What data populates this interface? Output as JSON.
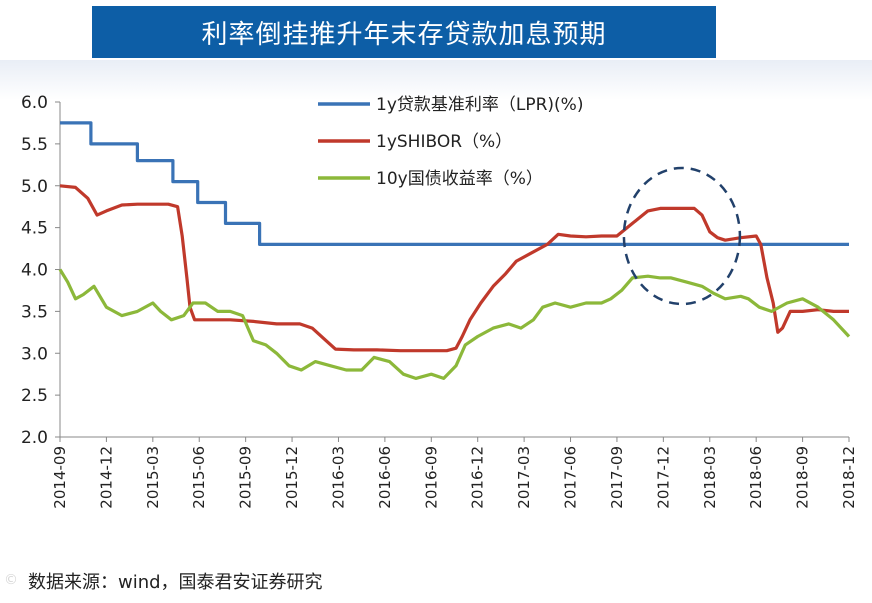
{
  "header": {
    "title": "利率倒挂推升年末存贷款加息预期"
  },
  "source": "数据来源：wind，国泰君安证券研究",
  "chart_data": {
    "type": "line",
    "ylim": [
      2.0,
      6.0
    ],
    "yticks": [
      "6.0",
      "5.5",
      "5.0",
      "4.5",
      "4.0",
      "3.5",
      "3.0",
      "2.5",
      "2.0"
    ],
    "xticks": [
      "2014-09",
      "2014-12",
      "2015-03",
      "2015-06",
      "2015-09",
      "2015-12",
      "2016-03",
      "2016-06",
      "2016-09",
      "2016-12",
      "2017-03",
      "2017-06",
      "2017-09",
      "2017-12",
      "2018-03",
      "2018-06",
      "2018-09",
      "2018-12"
    ],
    "x_months": [
      0,
      51
    ],
    "legend": [
      {
        "name": "1y贷款基准利率（LPR)(%)",
        "color": "#3a73b6"
      },
      {
        "name": "1ySHIBOR（%）",
        "color": "#c0392b"
      },
      {
        "name": "10y国债收益率（%）",
        "color": "#8cb83a"
      }
    ],
    "series": [
      {
        "name": "1y贷款基准利率（LPR)(%)",
        "color": "#3a73b6",
        "step": true,
        "points": [
          [
            0,
            5.75
          ],
          [
            2.0,
            5.75
          ],
          [
            2.0,
            5.5
          ],
          [
            5.0,
            5.5
          ],
          [
            5.0,
            5.3
          ],
          [
            7.3,
            5.3
          ],
          [
            7.3,
            5.05
          ],
          [
            8.9,
            5.05
          ],
          [
            8.9,
            4.8
          ],
          [
            10.7,
            4.8
          ],
          [
            10.7,
            4.55
          ],
          [
            12.9,
            4.55
          ],
          [
            12.9,
            4.3
          ],
          [
            51,
            4.3
          ]
        ]
      },
      {
        "name": "1ySHIBOR（%）",
        "color": "#c0392b",
        "step": false,
        "points": [
          [
            0,
            5.0
          ],
          [
            1,
            4.98
          ],
          [
            1.8,
            4.85
          ],
          [
            2.4,
            4.65
          ],
          [
            3,
            4.7
          ],
          [
            4,
            4.77
          ],
          [
            5,
            4.78
          ],
          [
            6,
            4.78
          ],
          [
            7,
            4.78
          ],
          [
            7.6,
            4.75
          ],
          [
            7.9,
            4.4
          ],
          [
            8.2,
            3.9
          ],
          [
            8.4,
            3.55
          ],
          [
            8.7,
            3.4
          ],
          [
            9.5,
            3.4
          ],
          [
            11,
            3.4
          ],
          [
            12.5,
            3.38
          ],
          [
            14,
            3.35
          ],
          [
            15.5,
            3.35
          ],
          [
            16.3,
            3.3
          ],
          [
            17.2,
            3.15
          ],
          [
            17.8,
            3.05
          ],
          [
            19,
            3.04
          ],
          [
            20.5,
            3.04
          ],
          [
            22,
            3.03
          ],
          [
            23.5,
            3.03
          ],
          [
            25,
            3.03
          ],
          [
            25.6,
            3.06
          ],
          [
            26,
            3.2
          ],
          [
            26.5,
            3.4
          ],
          [
            27.2,
            3.6
          ],
          [
            28,
            3.8
          ],
          [
            28.8,
            3.95
          ],
          [
            29.5,
            4.1
          ],
          [
            30.5,
            4.2
          ],
          [
            31.5,
            4.3
          ],
          [
            32.2,
            4.42
          ],
          [
            33,
            4.4
          ],
          [
            34,
            4.39
          ],
          [
            35,
            4.4
          ],
          [
            36,
            4.4
          ],
          [
            37,
            4.55
          ],
          [
            38,
            4.7
          ],
          [
            38.8,
            4.73
          ],
          [
            40,
            4.73
          ],
          [
            41,
            4.73
          ],
          [
            41.5,
            4.65
          ],
          [
            42,
            4.45
          ],
          [
            42.5,
            4.38
          ],
          [
            43,
            4.35
          ],
          [
            44,
            4.38
          ],
          [
            45,
            4.4
          ],
          [
            45.3,
            4.3
          ],
          [
            45.7,
            3.9
          ],
          [
            46.1,
            3.6
          ],
          [
            46.4,
            3.25
          ],
          [
            46.7,
            3.3
          ],
          [
            47.2,
            3.5
          ],
          [
            48,
            3.5
          ],
          [
            49,
            3.52
          ],
          [
            50,
            3.5
          ],
          [
            51,
            3.5
          ]
        ]
      },
      {
        "name": "10y国债收益率（%）",
        "color": "#8cb83a",
        "step": false,
        "points": [
          [
            0,
            4.0
          ],
          [
            0.5,
            3.85
          ],
          [
            1,
            3.65
          ],
          [
            1.5,
            3.7
          ],
          [
            2.2,
            3.8
          ],
          [
            3,
            3.55
          ],
          [
            4,
            3.45
          ],
          [
            5,
            3.5
          ],
          [
            6,
            3.6
          ],
          [
            6.5,
            3.5
          ],
          [
            7.2,
            3.4
          ],
          [
            8,
            3.45
          ],
          [
            8.6,
            3.6
          ],
          [
            9.4,
            3.6
          ],
          [
            10.2,
            3.5
          ],
          [
            11,
            3.5
          ],
          [
            11.8,
            3.45
          ],
          [
            12.5,
            3.15
          ],
          [
            13.3,
            3.1
          ],
          [
            14,
            3.0
          ],
          [
            14.8,
            2.85
          ],
          [
            15.6,
            2.8
          ],
          [
            16.5,
            2.9
          ],
          [
            17.5,
            2.85
          ],
          [
            18.5,
            2.8
          ],
          [
            19.5,
            2.8
          ],
          [
            20.3,
            2.95
          ],
          [
            21.3,
            2.9
          ],
          [
            22.2,
            2.75
          ],
          [
            23,
            2.7
          ],
          [
            24,
            2.75
          ],
          [
            24.8,
            2.7
          ],
          [
            25.6,
            2.85
          ],
          [
            26.2,
            3.1
          ],
          [
            27,
            3.2
          ],
          [
            28,
            3.3
          ],
          [
            29,
            3.35
          ],
          [
            29.8,
            3.3
          ],
          [
            30.6,
            3.4
          ],
          [
            31.2,
            3.55
          ],
          [
            32,
            3.6
          ],
          [
            33,
            3.55
          ],
          [
            34,
            3.6
          ],
          [
            35,
            3.6
          ],
          [
            35.6,
            3.65
          ],
          [
            36.3,
            3.75
          ],
          [
            37,
            3.9
          ],
          [
            38,
            3.92
          ],
          [
            38.8,
            3.9
          ],
          [
            39.5,
            3.9
          ],
          [
            40.5,
            3.85
          ],
          [
            41.5,
            3.8
          ],
          [
            42.2,
            3.72
          ],
          [
            43,
            3.65
          ],
          [
            44,
            3.68
          ],
          [
            44.5,
            3.65
          ],
          [
            45.2,
            3.55
          ],
          [
            46,
            3.5
          ],
          [
            47,
            3.6
          ],
          [
            48,
            3.65
          ],
          [
            49,
            3.55
          ],
          [
            50,
            3.4
          ],
          [
            51,
            3.2
          ]
        ]
      }
    ],
    "annotation": {
      "shape": "dashed-ellipse",
      "color": "#22416b"
    }
  }
}
